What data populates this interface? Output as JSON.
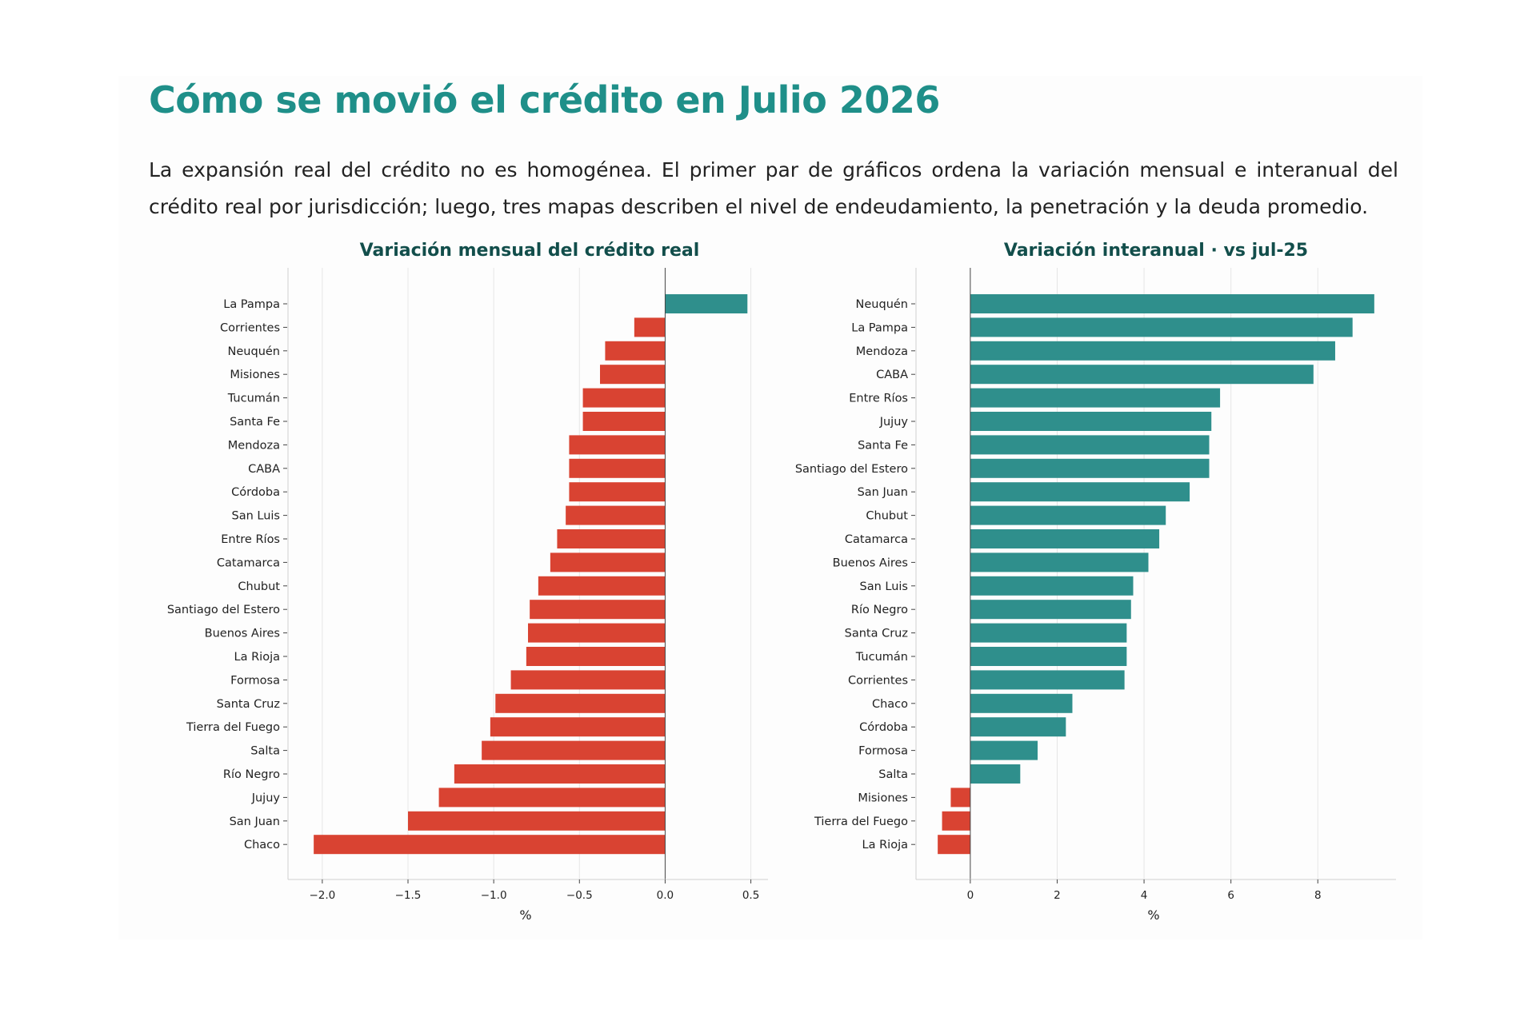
{
  "page": {
    "title": "Cómo se movió el crédito en Julio 2026",
    "intro": "La expansión real del crédito no es homogénea. El primer par de gráficos ordena la variación mensual e interanual del crédito real por jurisdicción; luego, tres mapas describen el nivel de endeudamiento, la penetración y la deuda promedio."
  },
  "colors": {
    "title": "#1f8f89",
    "chart_title": "#124e4b",
    "negative_bar": "#d94332",
    "positive_bar": "#2f8f8c",
    "grid": "#e6e6e6",
    "axis": "#444444"
  },
  "chart_data": [
    {
      "type": "bar",
      "orientation": "horizontal",
      "title": "Variación mensual del crédito real",
      "xlabel": "%",
      "ylabel": "",
      "xlim": [
        -2.2,
        0.6
      ],
      "xticks": [
        -2.0,
        -1.5,
        -1.0,
        -0.5,
        0.0,
        0.5
      ],
      "xtick_labels": [
        "−2.0",
        "−1.5",
        "−1.0",
        "−0.5",
        "0.0",
        "0.5"
      ],
      "grid": "vertical",
      "categories": [
        "La Pampa",
        "Corrientes",
        "Neuquén",
        "Misiones",
        "Tucumán",
        "Santa Fe",
        "Mendoza",
        "CABA",
        "Córdoba",
        "San Luis",
        "Entre Ríos",
        "Catamarca",
        "Chubut",
        "Santiago del Estero",
        "Buenos Aires",
        "La Rioja",
        "Formosa",
        "Santa Cruz",
        "Tierra del Fuego",
        "Salta",
        "Río Negro",
        "Jujuy",
        "San Juan",
        "Chaco"
      ],
      "values": [
        0.48,
        -0.18,
        -0.35,
        -0.38,
        -0.48,
        -0.48,
        -0.56,
        -0.56,
        -0.56,
        -0.58,
        -0.63,
        -0.67,
        -0.74,
        -0.79,
        -0.8,
        -0.81,
        -0.9,
        -0.99,
        -1.02,
        -1.07,
        -1.23,
        -1.32,
        -1.5,
        -2.05
      ]
    },
    {
      "type": "bar",
      "orientation": "horizontal",
      "title": "Variación interanual · vs jul-25",
      "xlabel": "%",
      "ylabel": "",
      "xlim": [
        -1.25,
        9.8
      ],
      "xticks": [
        0,
        2,
        4,
        6,
        8
      ],
      "xtick_labels": [
        "0",
        "2",
        "4",
        "6",
        "8"
      ],
      "grid": "vertical",
      "categories": [
        "Neuquén",
        "La Pampa",
        "Mendoza",
        "CABA",
        "Entre Ríos",
        "Jujuy",
        "Santa Fe",
        "Santiago del Estero",
        "San Juan",
        "Chubut",
        "Catamarca",
        "Buenos Aires",
        "San Luis",
        "Río Negro",
        "Santa Cruz",
        "Tucumán",
        "Corrientes",
        "Chaco",
        "Córdoba",
        "Formosa",
        "Salta",
        "Misiones",
        "Tierra del Fuego",
        "La Rioja"
      ],
      "values": [
        9.3,
        8.8,
        8.4,
        7.9,
        5.75,
        5.55,
        5.5,
        5.5,
        5.05,
        4.5,
        4.35,
        4.1,
        3.75,
        3.7,
        3.6,
        3.6,
        3.55,
        2.35,
        2.2,
        1.55,
        1.15,
        -0.45,
        -0.65,
        -0.75
      ]
    }
  ]
}
